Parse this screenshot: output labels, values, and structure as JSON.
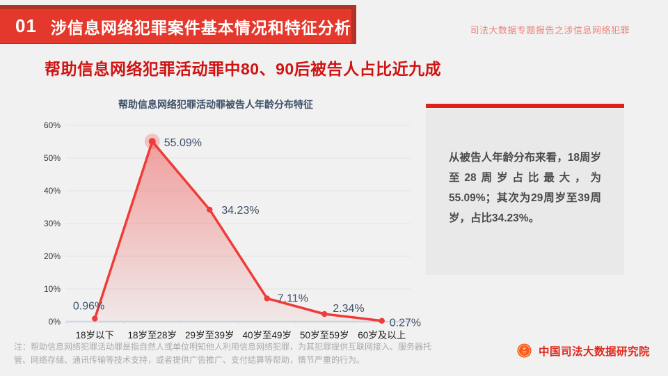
{
  "header": {
    "section_number": "01",
    "section_title": "涉信息网络犯罪案件基本情况和特征分析",
    "report_series": "司法大数据专题报告之涉信息网络犯罪",
    "slide_title": "帮助信息网络犯罪活动罪中80、90后被告人占比近九成"
  },
  "chart_data": {
    "type": "line",
    "title": "帮助信息网络犯罪活动罪被告人年龄分布特征",
    "categories": [
      "18岁以下",
      "18岁至28岁",
      "29岁至39岁",
      "40岁至49岁",
      "50岁至59岁",
      "60岁及以上"
    ],
    "values": [
      0.96,
      55.09,
      34.23,
      7.11,
      2.34,
      0.27
    ],
    "value_labels": [
      "0.96%",
      "55.09%",
      "34.23%",
      "7.11%",
      "2.34%",
      "0.27%"
    ],
    "ytick_labels": [
      "0%",
      "10%",
      "20%",
      "30%",
      "40%",
      "50%",
      "60%"
    ],
    "ylim": [
      0,
      60
    ],
    "ytick_step": 10,
    "grid": true,
    "area_fill": true,
    "legend": "none",
    "highlight_index": 1,
    "xlabel": "",
    "ylabel": ""
  },
  "panel": {
    "text": "从被告人年龄分布来看，18周岁至28周岁占比最大，为55.09%；其次为29周岁至39周岁，占比34.23%。"
  },
  "footnote": {
    "text": "注：帮助信息网络犯罪活动罪是指自然人或单位明知他人利用信息网络犯罪，为其犯罪提供互联网接入、服务器托管、网络存储、通讯传输等技术支持，或者提供广告推广、支付结算等帮助，情节严重的行为。"
  },
  "footer": {
    "org_name": "中国司法大数据研究院",
    "logo_icon": "national-emblem-icon"
  },
  "colors": {
    "background": "#f1f1f1",
    "banner_red": "#e5382c",
    "banner_shadow": "#b23227",
    "title_red": "#d01212",
    "accent_red": "#e01f15",
    "line_red": "#ee3c38",
    "label_navy": "#3e5068",
    "axis_blue": "#ccd9e6",
    "gridline": "#e2e2e3",
    "panel_bg": "#e9e9ea",
    "footer_red": "#e0281c"
  }
}
